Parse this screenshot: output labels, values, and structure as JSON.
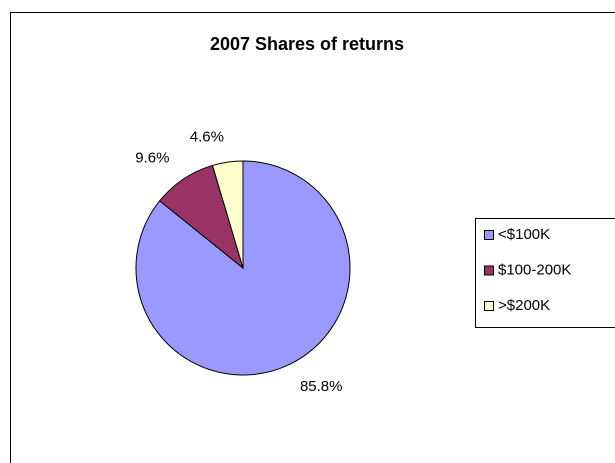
{
  "chart_data": {
    "type": "pie",
    "title": "2007 Shares of returns",
    "categories": [
      "<$100K",
      "$100-200K",
      ">$200K"
    ],
    "values": [
      85.8,
      9.6,
      4.6
    ],
    "value_labels": [
      "85.8%",
      "9.6%",
      "4.6%"
    ],
    "colors": [
      "#9999ff",
      "#993366",
      "#ffffcc"
    ],
    "legend": "right"
  }
}
